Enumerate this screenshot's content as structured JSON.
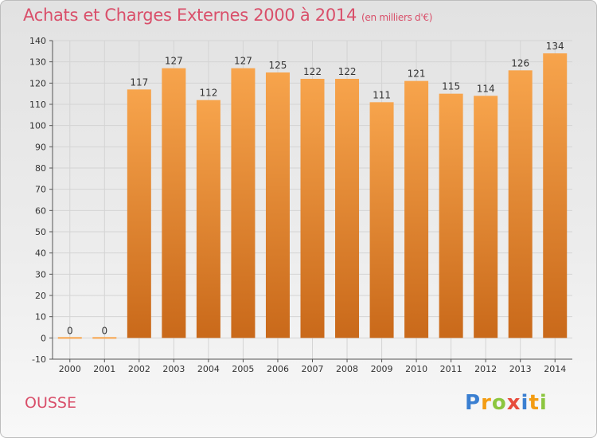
{
  "title": "Achats et Charges Externes 2000 à 2014",
  "subtitle": "(en milliers d'€)",
  "location": "OUSSE",
  "logo": {
    "text": "Proxiti",
    "letters": [
      {
        "char": "P",
        "color": "#3a7fd1"
      },
      {
        "char": "r",
        "color": "#f39c12"
      },
      {
        "char": "o",
        "color": "#8cc63f"
      },
      {
        "char": "x",
        "color": "#e74c3c"
      },
      {
        "char": "i",
        "color": "#3a7fd1"
      },
      {
        "char": "t",
        "color": "#f39c12"
      },
      {
        "char": "i",
        "color": "#8cc63f"
      }
    ]
  },
  "colors": {
    "bar_top": "#f7a44c",
    "bar_bottom": "#c9691a",
    "title": "#d94f6a",
    "grid": "#d4d4d4"
  },
  "chart_data": {
    "type": "bar",
    "title": "Achats et Charges Externes 2000 à 2014",
    "subtitle": "(en milliers d'€)",
    "categories": [
      "2000",
      "2001",
      "2002",
      "2003",
      "2004",
      "2005",
      "2006",
      "2007",
      "2008",
      "2009",
      "2010",
      "2011",
      "2012",
      "2013",
      "2014"
    ],
    "values": [
      0,
      0,
      117,
      127,
      112,
      127,
      125,
      122,
      122,
      111,
      121,
      115,
      114,
      126,
      134
    ],
    "ylim": [
      -10,
      140
    ],
    "yticks": [
      -10,
      0,
      10,
      20,
      30,
      40,
      50,
      60,
      70,
      80,
      90,
      100,
      110,
      120,
      130,
      140
    ],
    "grid": true,
    "legend": "none"
  }
}
